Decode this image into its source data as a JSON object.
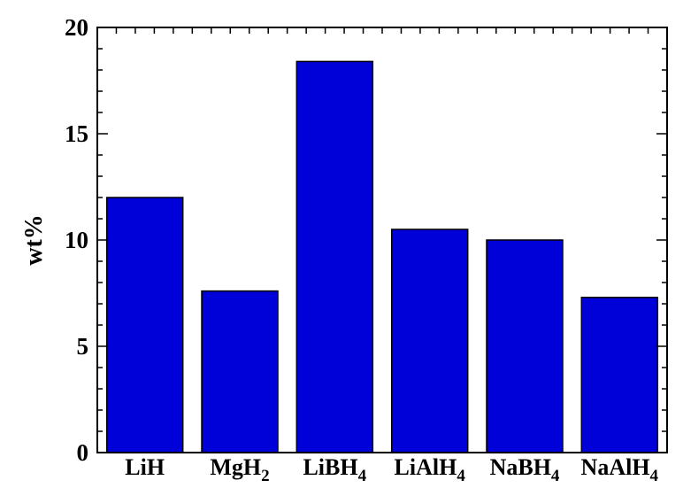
{
  "chart_data": {
    "type": "bar",
    "title": "",
    "xlabel": "",
    "ylabel": "wt%",
    "ylim": [
      0,
      20
    ],
    "y_ticks": [
      0,
      5,
      10,
      15,
      20
    ],
    "categories": [
      "LiH",
      "MgH2",
      "LiBH4",
      "LiAlH4",
      "NaBH4",
      "NaAlH4"
    ],
    "category_parts": [
      {
        "base": "LiH",
        "sub": ""
      },
      {
        "base": "MgH",
        "sub": "2"
      },
      {
        "base": "LiBH",
        "sub": "4"
      },
      {
        "base": "LiAlH",
        "sub": "4"
      },
      {
        "base": "NaBH",
        "sub": "4"
      },
      {
        "base": "NaAlH",
        "sub": "4"
      }
    ],
    "values": [
      12.0,
      7.6,
      18.4,
      10.5,
      10.0,
      7.3
    ],
    "bar_color": "#0000d8",
    "grid": false
  }
}
